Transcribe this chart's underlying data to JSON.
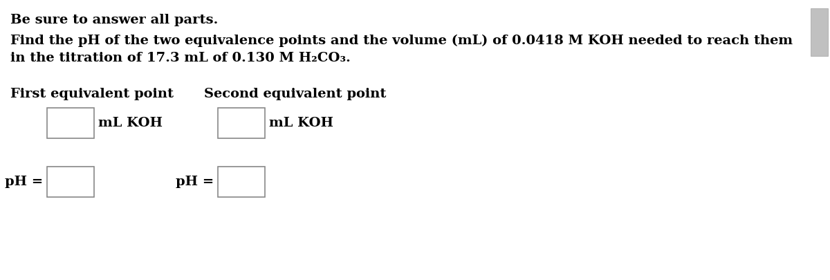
{
  "bg_color": "#ffffff",
  "text_color": "#000000",
  "line1": "Be sure to answer all parts.",
  "line2": "Find the pH of the two equivalence points and the volume (mL) of 0.0418 Μ KOH needed to reach them",
  "line3": "in the titration of 17.3 mL of 0.130 Μ H₂CO₃.",
  "first_label": "First equivalent point",
  "second_label": "Second equivalent point",
  "ml_koh": "mL KOH",
  "ph_eq": "pH =",
  "font_size": 14,
  "fig_width": 12.0,
  "fig_height": 4.05,
  "dpi": 100,
  "scrollbar_color": "#c8c8c8",
  "box_edge_color": "#888888"
}
